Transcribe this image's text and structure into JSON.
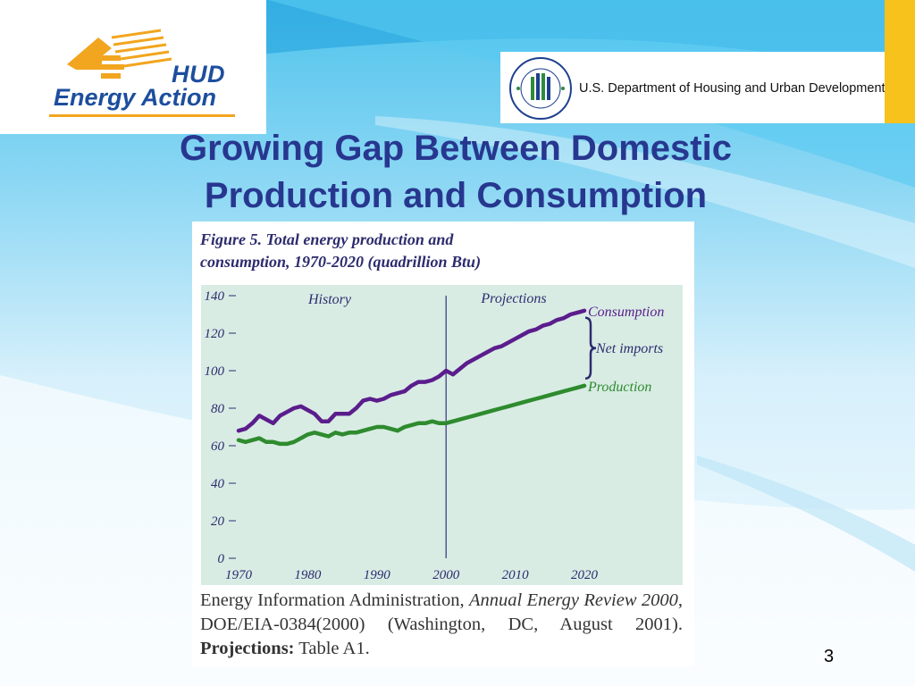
{
  "branding": {
    "hud": "HUD",
    "energy_action": "Energy Action",
    "department": "U.S. Department of Housing and Urban Development",
    "colors": {
      "logo_blue": "#1d4e9e",
      "logo_orange": "#f2a51e",
      "accent_yellow": "#f7c21b",
      "title_blue": "#27378f"
    }
  },
  "slide": {
    "title_line1": "Growing Gap Between Domestic",
    "title_line2": "Production and Consumption",
    "page_number": "3"
  },
  "figure": {
    "caption_line1": "Figure 5. Total energy production and",
    "caption_line2": "consumption, 1970-2020 (quadrillion Btu)",
    "source_agency": "Energy Information Administration,",
    "source_title": "Annual Energy Review 2000",
    "source_rest": ", DOE/EIA-0384(2000) (Washington, DC, August 2001).",
    "source_proj_label": "Projections:",
    "source_proj_value": "Table A1."
  },
  "chart_data": {
    "type": "line",
    "title": "Figure 5. Total energy production and consumption, 1970-2020 (quadrillion Btu)",
    "xlim": [
      1970,
      2020
    ],
    "ylim": [
      0,
      140
    ],
    "x_ticks": [
      "1970",
      "1980",
      "1990",
      "2000",
      "2010",
      "2020"
    ],
    "y_ticks": [
      "0",
      "20",
      "40",
      "60",
      "80",
      "100",
      "120",
      "140"
    ],
    "divider_x": 2000,
    "region_labels": {
      "history": "History",
      "projections": "Projections"
    },
    "bracket_label": "Net imports",
    "grid": false,
    "background_color": "#d8ece4",
    "series": [
      {
        "name": "Consumption",
        "color": "#5b1d8c",
        "x": [
          1970,
          1971,
          1972,
          1973,
          1974,
          1975,
          1976,
          1977,
          1978,
          1979,
          1980,
          1981,
          1982,
          1983,
          1984,
          1985,
          1986,
          1987,
          1988,
          1989,
          1990,
          1991,
          1992,
          1993,
          1994,
          1995,
          1996,
          1997,
          1998,
          1999,
          2000,
          2001,
          2002,
          2003,
          2004,
          2005,
          2006,
          2007,
          2008,
          2009,
          2010,
          2011,
          2012,
          2013,
          2014,
          2015,
          2016,
          2017,
          2018,
          2019,
          2020
        ],
        "values": [
          68,
          69,
          72,
          76,
          74,
          72,
          76,
          78,
          80,
          81,
          79,
          77,
          73,
          73,
          77,
          77,
          77,
          80,
          84,
          85,
          84,
          85,
          87,
          88,
          89,
          92,
          94,
          94,
          95,
          97,
          100,
          98,
          101,
          104,
          106,
          108,
          110,
          112,
          113,
          115,
          117,
          119,
          121,
          122,
          124,
          125,
          127,
          128,
          130,
          131,
          132
        ]
      },
      {
        "name": "Production",
        "color": "#2e8b2e",
        "x": [
          1970,
          1971,
          1972,
          1973,
          1974,
          1975,
          1976,
          1977,
          1978,
          1979,
          1980,
          1981,
          1982,
          1983,
          1984,
          1985,
          1986,
          1987,
          1988,
          1989,
          1990,
          1991,
          1992,
          1993,
          1994,
          1995,
          1996,
          1997,
          1998,
          1999,
          2000,
          2001,
          2002,
          2003,
          2004,
          2005,
          2006,
          2007,
          2008,
          2009,
          2010,
          2011,
          2012,
          2013,
          2014,
          2015,
          2016,
          2017,
          2018,
          2019,
          2020
        ],
        "values": [
          63,
          62,
          63,
          64,
          62,
          62,
          61,
          61,
          62,
          64,
          66,
          67,
          66,
          65,
          67,
          66,
          67,
          67,
          68,
          69,
          70,
          70,
          69,
          68,
          70,
          71,
          72,
          72,
          73,
          72,
          72,
          73,
          74,
          75,
          76,
          77,
          78,
          79,
          80,
          81,
          82,
          83,
          84,
          85,
          86,
          87,
          88,
          89,
          90,
          91,
          92
        ]
      }
    ]
  }
}
